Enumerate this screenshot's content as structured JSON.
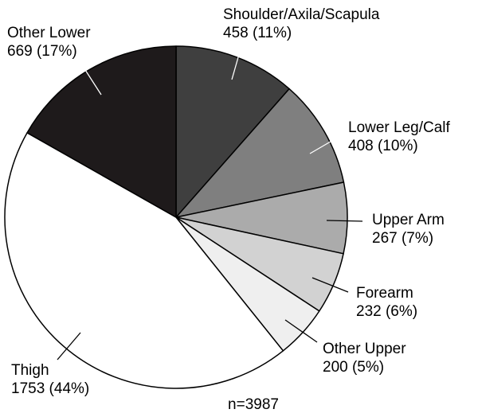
{
  "chart_data": {
    "type": "pie",
    "total_label": "n=3987",
    "slices": [
      {
        "name": "Shoulder/Axila/Scapula",
        "count": 458,
        "value_label": "458 (11%)",
        "color": "#3f3f3f"
      },
      {
        "name": "Lower Leg/Calf",
        "count": 408,
        "value_label": "408 (10%)",
        "color": "#7f7f7f"
      },
      {
        "name": "Upper Arm",
        "count": 267,
        "value_label": "267 (7%)",
        "color": "#ababab"
      },
      {
        "name": "Forearm",
        "count": 232,
        "value_label": "232 (6%)",
        "color": "#d2d2d2"
      },
      {
        "name": "Other Upper",
        "count": 200,
        "value_label": "200 (5%)",
        "color": "#efefef"
      },
      {
        "name": "Thigh",
        "count": 1753,
        "value_label": "1753 (44%)",
        "color": "#ffffff"
      },
      {
        "name": "Other Lower",
        "count": 669,
        "value_label": "669 (17%)",
        "color": "#1e1a1b"
      }
    ]
  }
}
